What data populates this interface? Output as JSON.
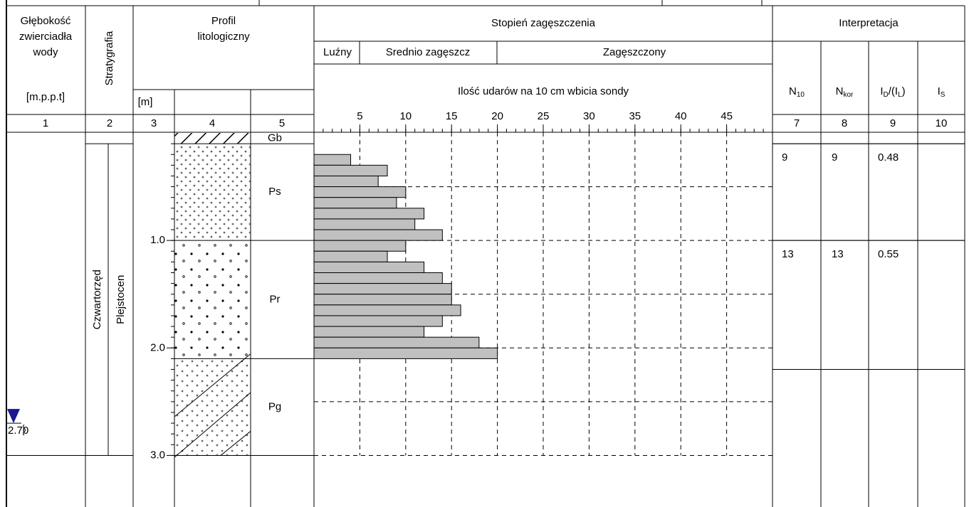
{
  "header": {
    "col1": [
      "Głębokość",
      "zwierciadła",
      "wody"
    ],
    "col1_unit": "[m.p.p.t]",
    "col2": "Stratygrafia",
    "profile": [
      "Profil",
      "litologiczny"
    ],
    "depth_unit": "[m]",
    "interp_title": "Interpretacja",
    "interp_cols": [
      [
        {
          "text": "N"
        },
        {
          "text": "10",
          "sub": true
        }
      ],
      [
        {
          "text": "N"
        },
        {
          "text": "kor",
          "sub": true
        }
      ],
      [
        {
          "text": "I"
        },
        {
          "text": "D",
          "sub": true
        },
        {
          "text": "/(I"
        },
        {
          "text": "L",
          "sub": true
        },
        {
          "text": ")"
        }
      ],
      [
        {
          "text": "I"
        },
        {
          "text": "S",
          "sub": true
        }
      ]
    ],
    "column_numbers": [
      "1",
      "2",
      "3",
      "4",
      "5",
      "7",
      "8",
      "9",
      "10"
    ]
  },
  "chart_data": {
    "type": "bar",
    "title": "Stopień zagęszczenia",
    "density_classes": [
      "Luźny",
      "Srednio zagęszcz",
      "Zagęszczony"
    ],
    "xlabel": "Ilość udarów na 10 cm wbicia sondy",
    "depths": [
      0.2,
      0.3,
      0.4,
      0.5,
      0.6,
      0.7,
      0.8,
      0.9,
      1.0,
      1.1,
      1.2,
      1.3,
      1.4,
      1.5,
      1.6,
      1.7,
      1.8,
      1.9,
      2.0
    ],
    "values": [
      4,
      8,
      7,
      10,
      9,
      12,
      11,
      14,
      10,
      8,
      12,
      14,
      15,
      15,
      16,
      14,
      12,
      18,
      20
    ],
    "color": "#c0c0c0",
    "xlim": [
      0,
      50
    ],
    "xticks": [
      5,
      10,
      15,
      20,
      25,
      30,
      35,
      40,
      45
    ],
    "ylim": [
      0,
      3.48
    ],
    "yticks": [
      {
        "value": 1,
        "label": "1.0"
      },
      {
        "value": 2,
        "label": "2.0"
      },
      {
        "value": 3,
        "label": "3.0"
      }
    ],
    "grid": true
  },
  "stratigraphy": [
    "Czwartorzęd",
    "Plejstocen"
  ],
  "layers": [
    {
      "name": "Gb",
      "top": 0,
      "bottom": 0.1
    },
    {
      "name": "Ps",
      "top": 0.1,
      "bottom": 1.0
    },
    {
      "name": "Pr",
      "top": 1.0,
      "bottom": 2.1
    },
    {
      "name": "Pg",
      "top": 2.1,
      "bottom": 3.0
    }
  ],
  "interpretation": [
    {
      "top": 0.1,
      "bottom": 1.0,
      "values": [
        9,
        9,
        0.48
      ]
    },
    {
      "top": 1.0,
      "bottom": 2.2,
      "values": [
        13,
        13,
        0.55
      ]
    }
  ],
  "water_level": {
    "value": 2.7,
    "label": "2.70"
  }
}
